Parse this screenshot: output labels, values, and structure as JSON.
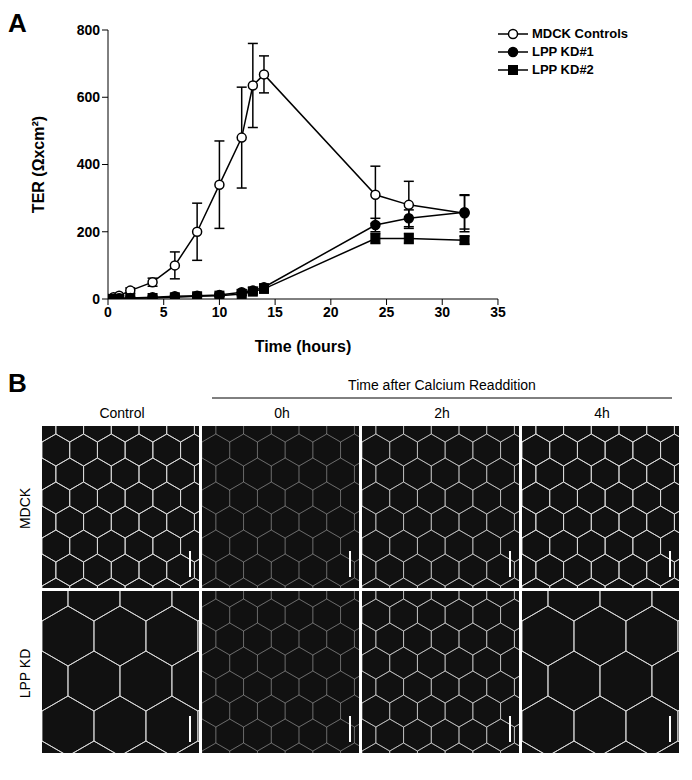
{
  "chart_data": {
    "type": "line",
    "x_label": "Time (hours)",
    "y_label": "TER (Ωxcm²)",
    "x": [
      0,
      0.5,
      1,
      2,
      4,
      6,
      8,
      10,
      12,
      13,
      14,
      24,
      27,
      32
    ],
    "series": [
      {
        "name": "MDCK Controls",
        "color": "#000000",
        "marker": "open_circle",
        "values": [
          0,
          5,
          10,
          25,
          50,
          100,
          200,
          340,
          480,
          635,
          668,
          310,
          280,
          255
        ],
        "errors": [
          0,
          0,
          0,
          8,
          12,
          40,
          85,
          130,
          150,
          125,
          55,
          85,
          70,
          55
        ]
      },
      {
        "name": "LPP KD#1",
        "color": "#000000",
        "marker": "circle",
        "values": [
          0,
          0,
          2,
          3,
          5,
          8,
          10,
          12,
          20,
          25,
          35,
          220,
          240,
          258
        ],
        "errors": [
          0,
          0,
          0,
          0,
          0,
          0,
          0,
          5,
          8,
          10,
          10,
          20,
          25,
          50
        ]
      },
      {
        "name": "LPP KD#2",
        "color": "#000000",
        "marker": "square",
        "values": [
          0,
          0,
          1,
          2,
          3,
          5,
          8,
          10,
          15,
          22,
          30,
          180,
          180,
          175
        ],
        "errors": [
          0,
          0,
          0,
          0,
          0,
          0,
          0,
          3,
          5,
          5,
          8,
          15,
          15,
          12
        ]
      }
    ],
    "xlim": [
      0,
      35
    ],
    "xticks": [
      0,
      5,
      10,
      15,
      20,
      25,
      30,
      35
    ],
    "ylim": [
      0,
      800
    ],
    "yticks": [
      0,
      200,
      400,
      600,
      800
    ],
    "grid": false,
    "legend": "upper right"
  },
  "panel_labels": [
    "A",
    "B"
  ],
  "image_panel": {
    "group_header": "Time after Calcium Readdition",
    "column_headers": [
      "Control",
      "0h",
      "2h",
      "4h"
    ],
    "row_labels": [
      "MDCK",
      "LPP KD"
    ]
  }
}
